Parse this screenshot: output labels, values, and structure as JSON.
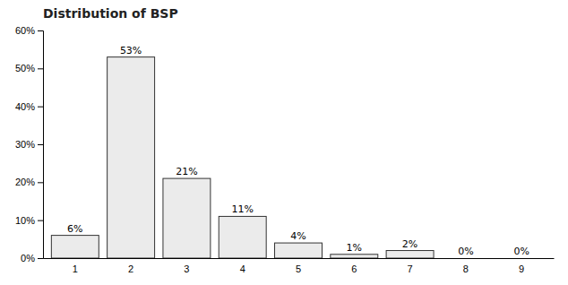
{
  "chart_data": {
    "type": "bar",
    "title": "Distribution of BSP",
    "categories": [
      1,
      2,
      3,
      4,
      5,
      6,
      7,
      8,
      9
    ],
    "values": [
      0.06,
      0.53,
      0.21,
      0.11,
      0.04,
      0.01,
      0.02,
      0.0,
      0.0
    ],
    "value_labels": [
      "6%",
      "53%",
      "21%",
      "11%",
      "4%",
      "1%",
      "2%",
      "0%",
      "0%"
    ],
    "data_labels": true,
    "color": "#ebebeb",
    "ylim": [
      0,
      0.6
    ],
    "yticks": [
      {
        "value": 0.0,
        "label": "0%"
      },
      {
        "value": 0.1,
        "label": "10%"
      },
      {
        "value": 0.2,
        "label": "20%"
      },
      {
        "value": 0.3,
        "label": "30%"
      },
      {
        "value": 0.4,
        "label": "40%"
      },
      {
        "value": 0.5,
        "label": "50%"
      },
      {
        "value": 0.6,
        "label": "60%"
      }
    ],
    "grid": false
  }
}
